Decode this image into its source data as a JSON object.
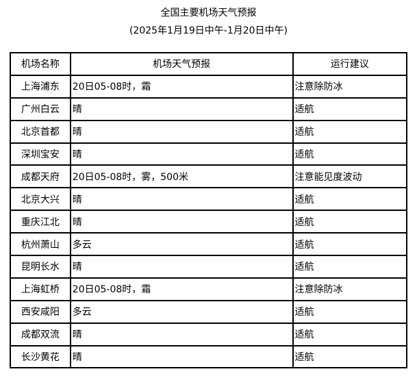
{
  "title": "全国主要机场天气预报",
  "subtitle": "(2025年1月19日中午-1月20日中午)",
  "table": {
    "headers": [
      "机场名称",
      "机场天气预报",
      "运行建议"
    ],
    "rows": [
      [
        "上海浦东",
        "20日05-08时，霜",
        "注意除防冰"
      ],
      [
        "广州白云",
        "晴",
        "适航"
      ],
      [
        "北京首都",
        "晴",
        "适航"
      ],
      [
        "深圳宝安",
        "晴",
        "适航"
      ],
      [
        "成都天府",
        "20日05-08时，雾，500米",
        "注意能见度波动"
      ],
      [
        "北京大兴",
        "晴",
        "适航"
      ],
      [
        "重庆江北",
        "晴",
        "适航"
      ],
      [
        "杭州萧山",
        "多云",
        "适航"
      ],
      [
        "昆明长水",
        "晴",
        "适航"
      ],
      [
        "上海虹桥",
        "20日05-08时，霜",
        "注意除防冰"
      ],
      [
        "西安咸阳",
        "多云",
        "适航"
      ],
      [
        "成都双流",
        "晴",
        "适航"
      ],
      [
        "长沙黄花",
        "晴",
        "适航"
      ]
    ]
  }
}
